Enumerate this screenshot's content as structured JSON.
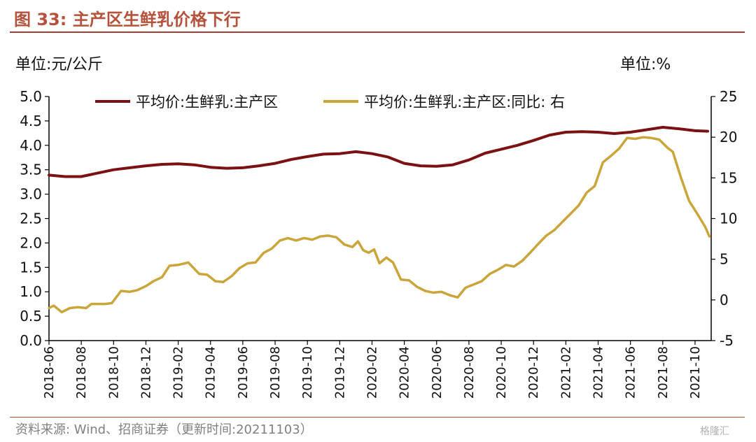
{
  "header": {
    "title": "图 33:  主产区生鲜乳价格下行",
    "unit_left": "单位:元/公斤",
    "unit_right": "单位:%"
  },
  "footer": {
    "source": "资料来源:  Wind、招商证券（更新时间:20211103）",
    "watermark": "格隆汇"
  },
  "colors": {
    "price_line": "#7b1113",
    "yoy_line": "#c9a53a",
    "title": "#b5523b"
  },
  "chart_data": {
    "type": "line",
    "title": "",
    "x_ticks": [
      "2018-06",
      "2018-08",
      "2018-10",
      "2018-12",
      "2019-02",
      "2019-04",
      "2019-06",
      "2019-08",
      "2019-10",
      "2019-12",
      "2020-02",
      "2020-04",
      "2020-06",
      "2020-08",
      "2020-10",
      "2020-12",
      "2021-02",
      "2021-04",
      "2021-06",
      "2021-08",
      "2021-10"
    ],
    "x_range": [
      "2018-06",
      "2021-11"
    ],
    "y_left": {
      "min": 0.0,
      "max": 5.0,
      "ticks": [
        "0.0",
        "0.5",
        "1.0",
        "1.5",
        "2.0",
        "2.5",
        "3.0",
        "3.5",
        "4.0",
        "4.5",
        "5.0"
      ]
    },
    "y_right": {
      "min": -5,
      "max": 25,
      "ticks": [
        "-5",
        "0",
        "5",
        "10",
        "15",
        "20",
        "25"
      ]
    },
    "grid": false,
    "legend_position": "top",
    "series": [
      {
        "name": "平均价:生鲜乳:主产区",
        "axis": "left",
        "points": [
          [
            "2018-06-01",
            3.39
          ],
          [
            "2018-07-01",
            3.36
          ],
          [
            "2018-08-01",
            3.36
          ],
          [
            "2018-09-01",
            3.43
          ],
          [
            "2018-10-01",
            3.5
          ],
          [
            "2018-11-01",
            3.54
          ],
          [
            "2018-12-01",
            3.58
          ],
          [
            "2019-01-01",
            3.61
          ],
          [
            "2019-02-01",
            3.62
          ],
          [
            "2019-03-01",
            3.6
          ],
          [
            "2019-04-01",
            3.55
          ],
          [
            "2019-05-01",
            3.53
          ],
          [
            "2019-06-01",
            3.54
          ],
          [
            "2019-07-01",
            3.58
          ],
          [
            "2019-08-01",
            3.63
          ],
          [
            "2019-09-01",
            3.71
          ],
          [
            "2019-10-01",
            3.77
          ],
          [
            "2019-11-01",
            3.82
          ],
          [
            "2019-12-01",
            3.83
          ],
          [
            "2020-01-01",
            3.87
          ],
          [
            "2020-02-01",
            3.83
          ],
          [
            "2020-03-01",
            3.76
          ],
          [
            "2020-04-01",
            3.63
          ],
          [
            "2020-05-01",
            3.58
          ],
          [
            "2020-06-01",
            3.57
          ],
          [
            "2020-07-01",
            3.6
          ],
          [
            "2020-08-01",
            3.7
          ],
          [
            "2020-09-01",
            3.84
          ],
          [
            "2020-10-01",
            3.92
          ],
          [
            "2020-11-01",
            4.0
          ],
          [
            "2020-12-01",
            4.1
          ],
          [
            "2021-01-01",
            4.21
          ],
          [
            "2021-02-01",
            4.27
          ],
          [
            "2021-03-01",
            4.28
          ],
          [
            "2021-04-01",
            4.27
          ],
          [
            "2021-05-01",
            4.24
          ],
          [
            "2021-06-01",
            4.27
          ],
          [
            "2021-07-01",
            4.32
          ],
          [
            "2021-08-01",
            4.37
          ],
          [
            "2021-09-01",
            4.34
          ],
          [
            "2021-10-01",
            4.3
          ],
          [
            "2021-10-25",
            4.29
          ]
        ]
      },
      {
        "name": "平均价:生鲜乳:主产区:同比:  右",
        "axis": "right",
        "points": [
          [
            "2018-06-01",
            -1.0
          ],
          [
            "2018-06-10",
            -0.7
          ],
          [
            "2018-06-25",
            -1.5
          ],
          [
            "2018-07-10",
            -1.0
          ],
          [
            "2018-07-25",
            -0.9
          ],
          [
            "2018-08-10",
            -1.0
          ],
          [
            "2018-08-20",
            -0.5
          ],
          [
            "2018-09-15",
            -0.5
          ],
          [
            "2018-09-28",
            -0.4
          ],
          [
            "2018-10-15",
            1.1
          ],
          [
            "2018-11-01",
            1.0
          ],
          [
            "2018-11-15",
            1.2
          ],
          [
            "2018-12-01",
            1.7
          ],
          [
            "2018-12-15",
            2.3
          ],
          [
            "2019-01-01",
            2.8
          ],
          [
            "2019-01-15",
            4.2
          ],
          [
            "2019-02-01",
            4.3
          ],
          [
            "2019-02-20",
            4.6
          ],
          [
            "2019-03-10",
            3.2
          ],
          [
            "2019-03-25",
            3.1
          ],
          [
            "2019-04-10",
            2.3
          ],
          [
            "2019-04-25",
            2.2
          ],
          [
            "2019-05-10",
            2.9
          ],
          [
            "2019-05-25",
            3.9
          ],
          [
            "2019-06-10",
            4.5
          ],
          [
            "2019-06-25",
            4.6
          ],
          [
            "2019-07-10",
            5.8
          ],
          [
            "2019-07-25",
            6.3
          ],
          [
            "2019-08-10",
            7.3
          ],
          [
            "2019-08-25",
            7.6
          ],
          [
            "2019-09-10",
            7.3
          ],
          [
            "2019-09-25",
            7.6
          ],
          [
            "2019-10-10",
            7.4
          ],
          [
            "2019-10-25",
            7.8
          ],
          [
            "2019-11-10",
            7.9
          ],
          [
            "2019-11-25",
            7.7
          ],
          [
            "2019-12-10",
            6.8
          ],
          [
            "2019-12-25",
            6.5
          ],
          [
            "2020-01-05",
            7.2
          ],
          [
            "2020-01-15",
            6.1
          ],
          [
            "2020-01-25",
            5.8
          ],
          [
            "2020-02-05",
            6.2
          ],
          [
            "2020-02-15",
            4.5
          ],
          [
            "2020-02-28",
            5.2
          ],
          [
            "2020-03-10",
            4.6
          ],
          [
            "2020-03-25",
            2.5
          ],
          [
            "2020-04-10",
            2.4
          ],
          [
            "2020-04-25",
            1.6
          ],
          [
            "2020-05-10",
            1.1
          ],
          [
            "2020-05-25",
            0.9
          ],
          [
            "2020-06-10",
            1.0
          ],
          [
            "2020-06-25",
            0.6
          ],
          [
            "2020-07-10",
            0.3
          ],
          [
            "2020-07-25",
            1.5
          ],
          [
            "2020-08-10",
            1.9
          ],
          [
            "2020-08-25",
            2.3
          ],
          [
            "2020-09-10",
            3.2
          ],
          [
            "2020-09-25",
            3.7
          ],
          [
            "2020-10-10",
            4.3
          ],
          [
            "2020-10-25",
            4.1
          ],
          [
            "2020-11-10",
            4.8
          ],
          [
            "2020-11-25",
            5.8
          ],
          [
            "2020-12-10",
            6.9
          ],
          [
            "2020-12-25",
            7.9
          ],
          [
            "2021-01-10",
            8.6
          ],
          [
            "2021-01-25",
            9.6
          ],
          [
            "2021-02-10",
            10.6
          ],
          [
            "2021-02-25",
            11.6
          ],
          [
            "2021-03-10",
            13.2
          ],
          [
            "2021-03-25",
            14.0
          ],
          [
            "2021-04-10",
            16.9
          ],
          [
            "2021-04-25",
            17.7
          ],
          [
            "2021-05-10",
            18.6
          ],
          [
            "2021-05-25",
            19.9
          ],
          [
            "2021-06-10",
            19.8
          ],
          [
            "2021-06-25",
            20.0
          ],
          [
            "2021-07-10",
            19.9
          ],
          [
            "2021-07-25",
            19.7
          ],
          [
            "2021-08-10",
            18.7
          ],
          [
            "2021-08-20",
            18.2
          ],
          [
            "2021-09-05",
            15.0
          ],
          [
            "2021-09-20",
            12.2
          ],
          [
            "2021-10-05",
            10.6
          ],
          [
            "2021-10-20",
            9.0
          ],
          [
            "2021-10-28",
            7.8
          ]
        ]
      }
    ]
  }
}
